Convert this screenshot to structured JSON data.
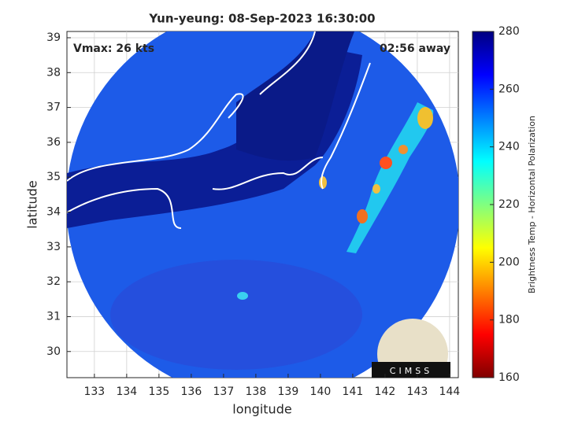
{
  "chart_data": {
    "type": "image",
    "title": "Yun-yeung: 08-Sep-2023 16:30:00",
    "annotations": [
      "Vmax: 26 kts",
      "02:56 away"
    ],
    "xlabel": "longitude",
    "ylabel": "latitude",
    "xlim": [
      132.15,
      144.27
    ],
    "ylim": [
      29.25,
      39.18
    ],
    "xticks": [
      133,
      134,
      135,
      136,
      137,
      138,
      139,
      140,
      141,
      142,
      143,
      144
    ],
    "yticks": [
      30,
      31,
      32,
      33,
      34,
      35,
      36,
      37,
      38,
      39
    ],
    "grid": true,
    "colorbar": {
      "label": "Brightness Temp - Horizontal Polarization",
      "lim": [
        160,
        280
      ],
      "ticks": [
        160,
        180,
        200,
        220,
        240,
        260,
        280
      ],
      "colormap": [
        "#800000",
        "#ff0000",
        "#ff8000",
        "#ffff00",
        "#80ff80",
        "#00ffff",
        "#0080ff",
        "#0000ff",
        "#000080"
      ]
    },
    "logo_text": "CIMSS"
  }
}
